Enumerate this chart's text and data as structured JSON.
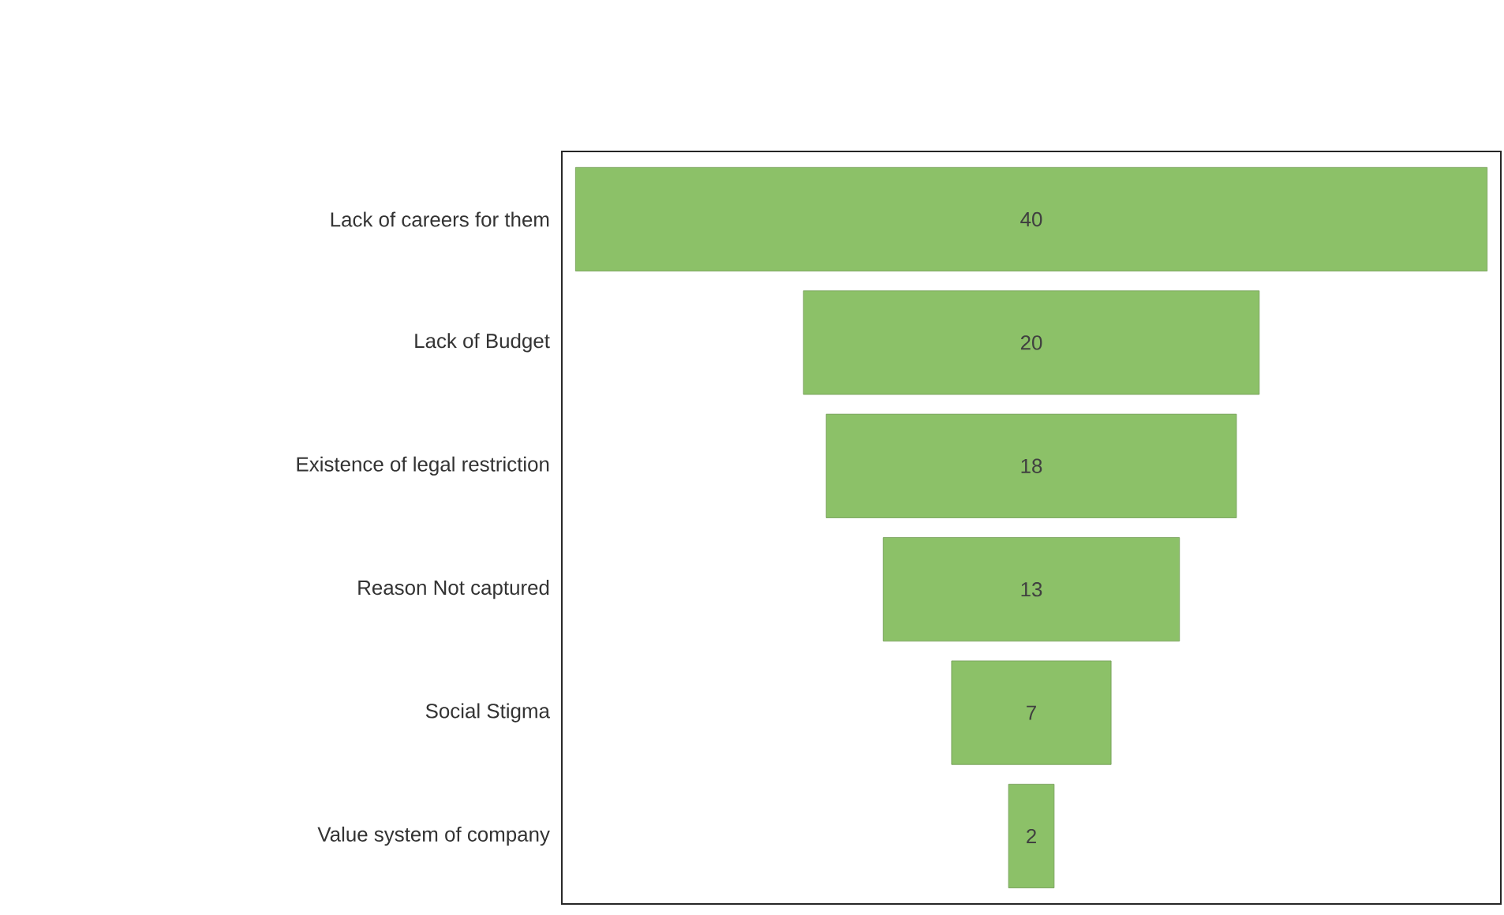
{
  "chart_data": {
    "type": "other",
    "categories": [
      "Lack of careers for them",
      "Lack of Budget",
      "Existence of legal restriction",
      "Reason Not captured",
      "Social Stigma",
      "Value system of company"
    ],
    "values": [
      40,
      20,
      18,
      13,
      7,
      2
    ],
    "color": "#8cc168",
    "data_labels": true
  }
}
